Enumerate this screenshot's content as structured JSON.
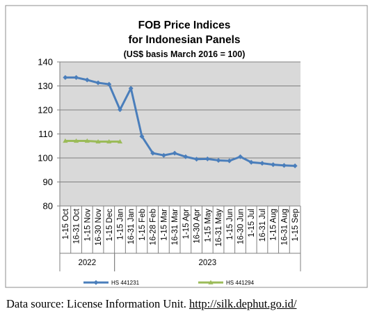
{
  "chart_data": {
    "type": "line",
    "title": "FOB Price Indices",
    "subtitle": "for Indonesian Panels",
    "subtitle2": "(US$ basis March 2016 = 100)",
    "ylim": [
      80,
      140
    ],
    "yticks": [
      80,
      90,
      100,
      110,
      120,
      130,
      140
    ],
    "grid": true,
    "legend_position": "bottom",
    "categories": [
      "1-15 Oct",
      "16-31 Oct",
      "1-15 Nov",
      "16-30 Nov",
      "1-15 Dec",
      "1-15 Jan",
      "16-31 Jan",
      "1-15 Feb",
      "16-28 Feb",
      "1-15 Mar",
      "16-31 Mar",
      "1-15 Apr",
      "16-30 Apr",
      "1-15 May",
      "16-31 May",
      "1-15 Jun",
      "16-30 Jun",
      "1-15 Jul",
      "16-31 Jul",
      "1-15 Aug",
      "16-31 Aug",
      "1-15 Sep"
    ],
    "year_groups": [
      {
        "label": "2022",
        "start": 0,
        "end": 4
      },
      {
        "label": "2023",
        "start": 5,
        "end": 21
      }
    ],
    "series": [
      {
        "name": "HS 441231",
        "color": "#4a7ebb",
        "values": [
          133.5,
          133.5,
          132.5,
          131.3,
          130.7,
          120.1,
          129.0,
          109.0,
          102.0,
          101.1,
          102.0,
          100.5,
          99.5,
          99.6,
          99.0,
          98.8,
          100.5,
          98.2,
          97.8,
          97.2,
          96.9,
          96.7
        ]
      },
      {
        "name": "HS 441294",
        "color": "#9bbb59",
        "values": [
          107.1,
          107.1,
          107.1,
          106.8,
          106.8,
          106.8,
          null,
          null,
          null,
          null,
          null,
          null,
          null,
          null,
          null,
          null,
          null,
          null,
          null,
          null,
          null,
          null
        ]
      }
    ]
  },
  "caption": {
    "prefix": "Data source: License Information Unit. ",
    "link": "http://silk.dephut.go.id/"
  }
}
